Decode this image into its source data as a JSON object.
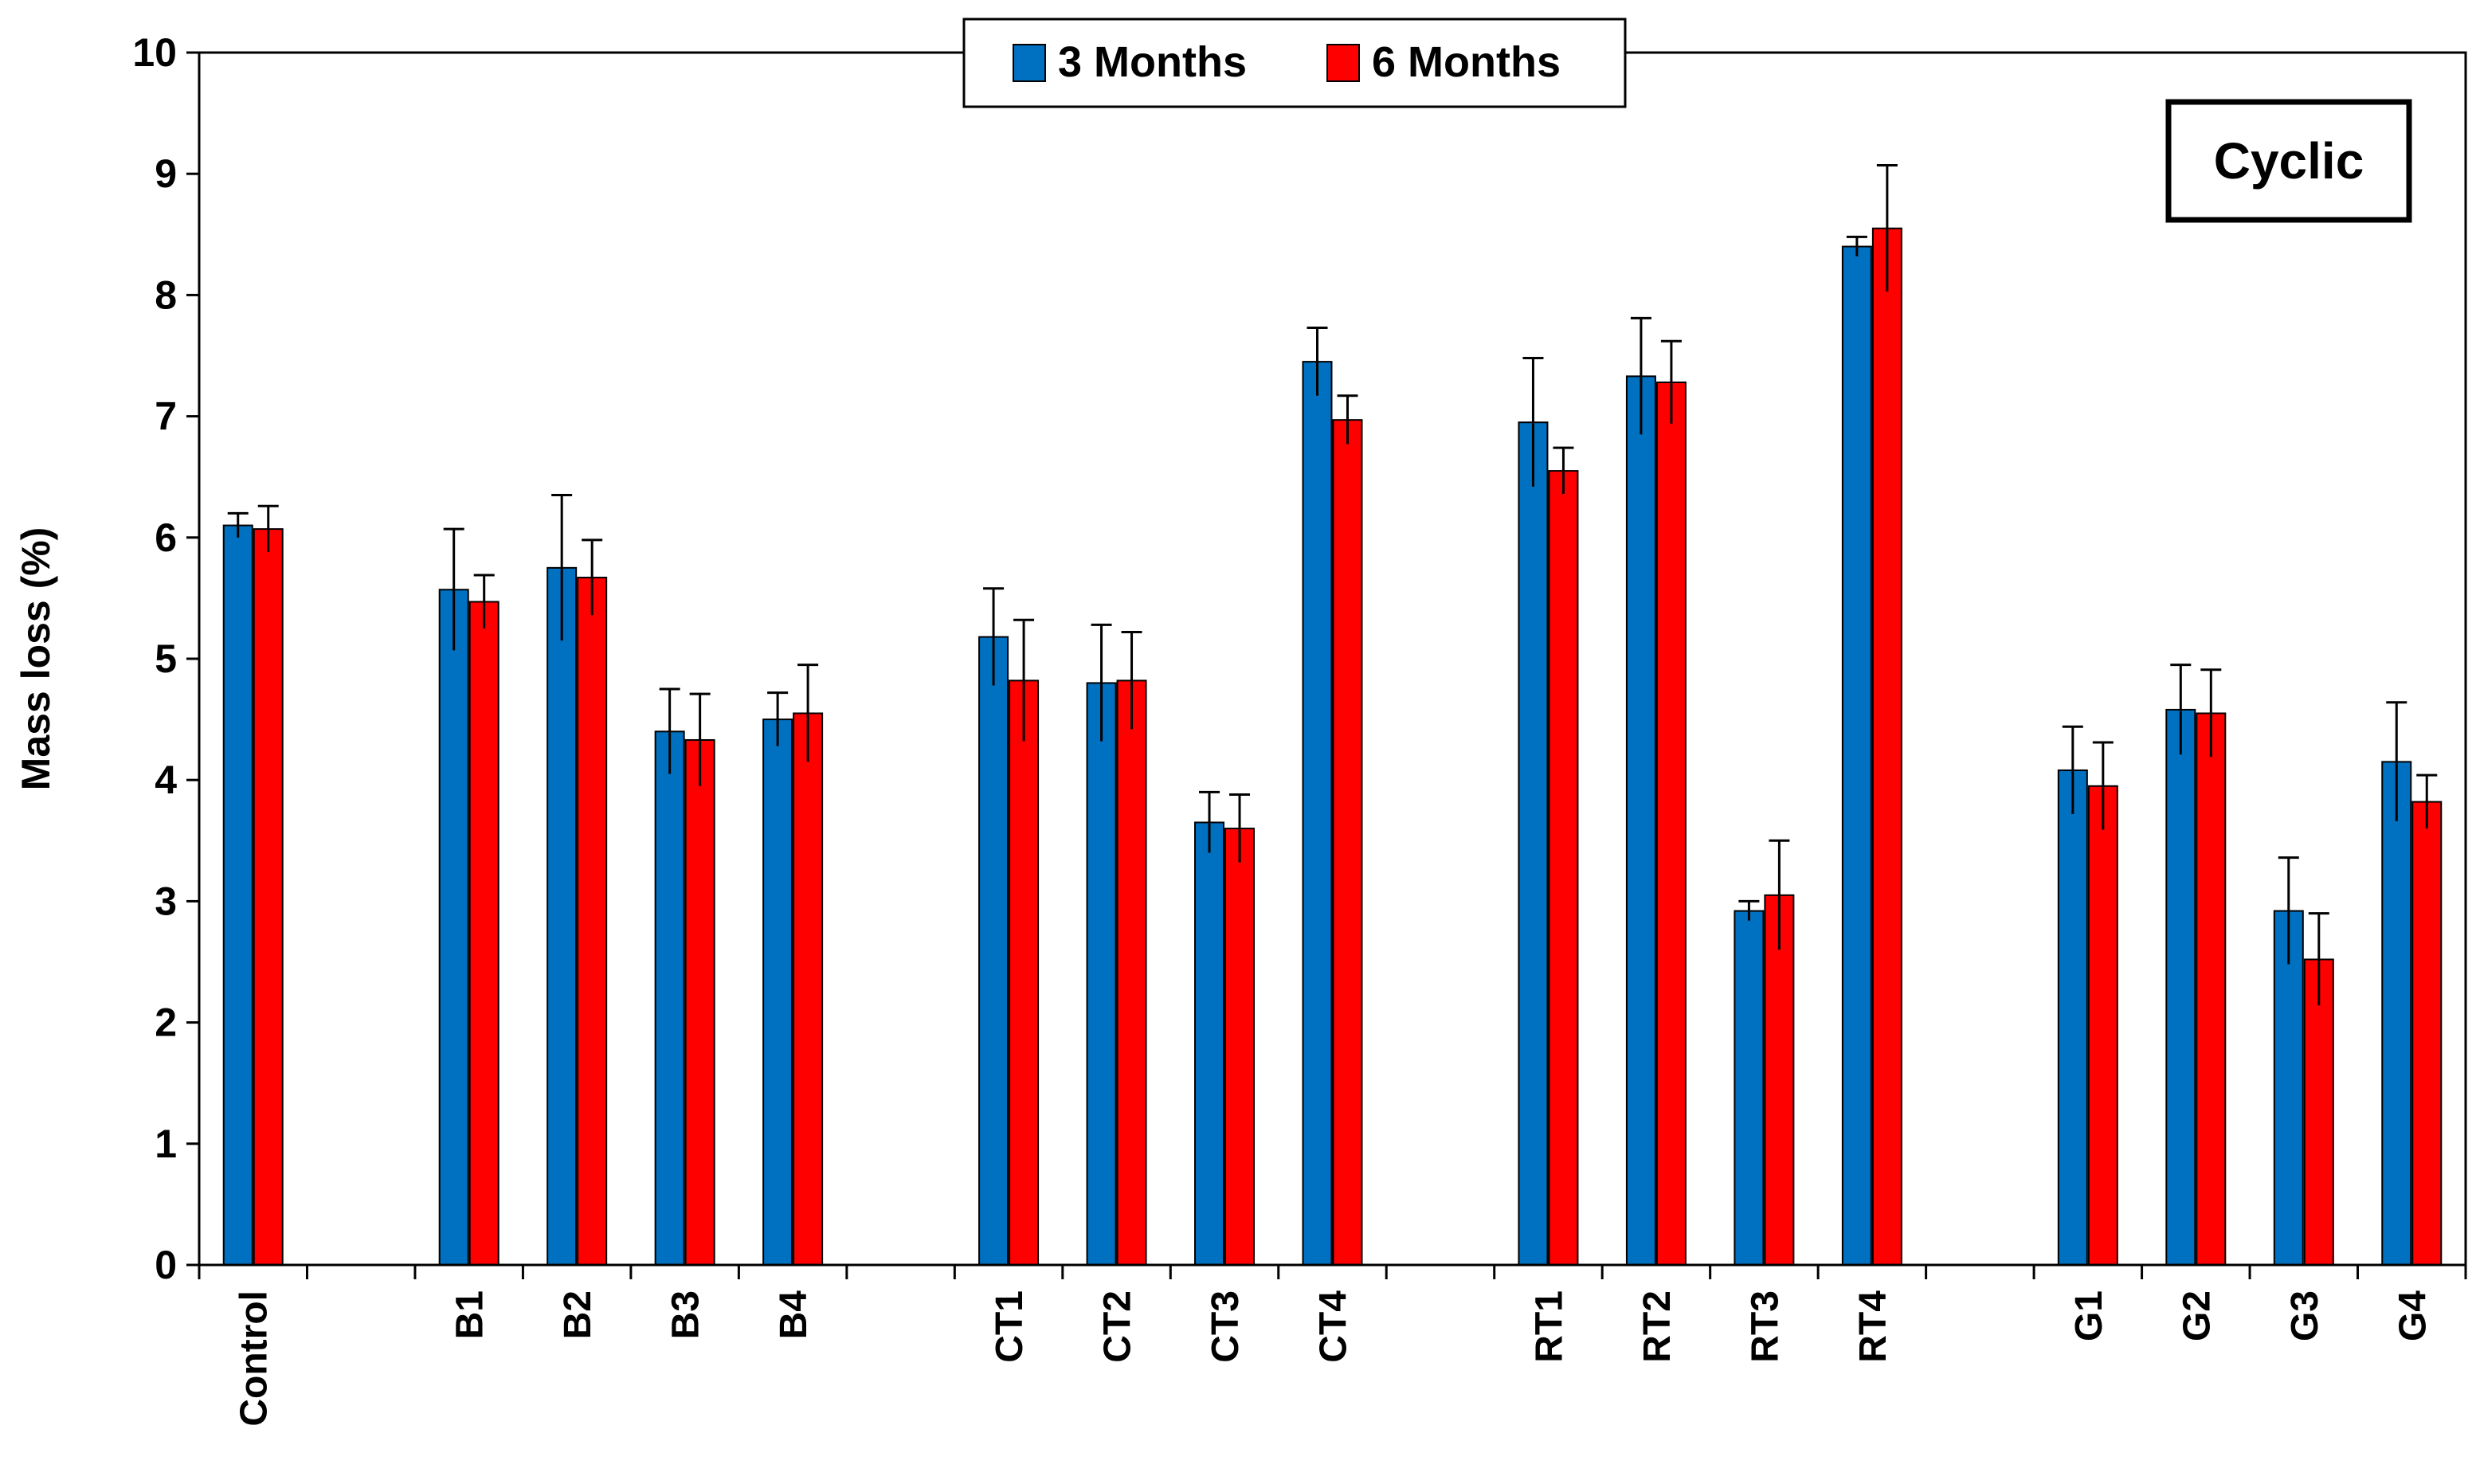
{
  "chart_data": {
    "type": "bar",
    "title": "",
    "xlabel": "",
    "ylabel": "Mass loss (%)",
    "ylim": [
      0,
      10
    ],
    "yticks": [
      "0",
      "1",
      "2",
      "3",
      "4",
      "5",
      "6",
      "7",
      "8",
      "9",
      "10"
    ],
    "grid": false,
    "legend_position": "top-center",
    "annotation": "Cyclic",
    "categories": [
      "Control",
      "",
      "B1",
      "B2",
      "B3",
      "B4",
      "",
      "CT1",
      "CT2",
      "CT3",
      "CT4",
      "",
      "RT1",
      "RT2",
      "RT3",
      "RT4",
      "",
      "G1",
      "G2",
      "G3",
      "G4"
    ],
    "series": [
      {
        "name": "3 Months",
        "color": "#0070C0",
        "values": [
          6.1,
          null,
          5.57,
          5.75,
          4.4,
          4.5,
          null,
          5.18,
          4.8,
          3.65,
          7.45,
          null,
          6.95,
          7.33,
          2.92,
          8.4,
          null,
          4.08,
          4.58,
          2.92,
          4.15
        ],
        "errors": [
          0.1,
          null,
          0.5,
          0.6,
          0.35,
          0.22,
          null,
          0.4,
          0.48,
          0.25,
          0.28,
          null,
          0.53,
          0.48,
          0.08,
          0.08,
          null,
          0.36,
          0.37,
          0.44,
          0.49
        ]
      },
      {
        "name": "6 Months",
        "color": "#FF0000",
        "values": [
          6.07,
          null,
          5.47,
          5.67,
          4.33,
          4.55,
          null,
          4.82,
          4.82,
          3.6,
          6.97,
          null,
          6.55,
          7.28,
          3.05,
          8.55,
          null,
          3.95,
          4.55,
          2.52,
          3.82
        ],
        "errors": [
          0.19,
          null,
          0.22,
          0.31,
          0.38,
          0.4,
          null,
          0.5,
          0.4,
          0.28,
          0.2,
          null,
          0.19,
          0.34,
          0.45,
          0.52,
          null,
          0.36,
          0.36,
          0.38,
          0.22
        ]
      }
    ]
  }
}
